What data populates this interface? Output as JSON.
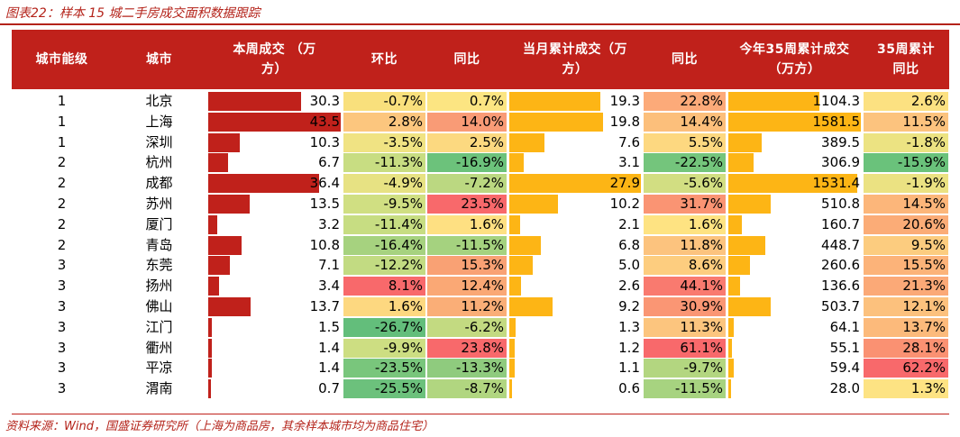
{
  "title": "图表22：样本 15 城二手房成交面积数据跟踪",
  "source": "资料来源：Wind，国盛证券研究所（上海为商品房，其余样本城市均为商品住宅）",
  "colors": {
    "header_bg": "#c0211b",
    "bar_weekly": "#c0211b",
    "bar_cumulative": "#fdb515"
  },
  "headers": [
    [
      "城市能级"
    ],
    [
      "城市"
    ],
    [
      "本周成交 （万",
      "方）"
    ],
    [
      "环比"
    ],
    [
      "同比"
    ],
    [
      "当月累计成交（万",
      "方）"
    ],
    [
      "同比"
    ],
    [
      "今年35周累计成交",
      "（万方）"
    ],
    [
      "35周累计",
      "同比"
    ]
  ],
  "rows": [
    {
      "tier": "1",
      "city": "北京",
      "week": "30.3",
      "wow": "-0.7%",
      "week_yoy": "0.7%",
      "month": "19.3",
      "month_yoy": "22.8%",
      "ytd": "1104.3",
      "ytd_yoy": "2.6%",
      "wow_color": "#f9e07c",
      "week_yoy_color": "#fce582",
      "month_yoy_color": "#fcaa79",
      "ytd_yoy_color": "#fce181",
      "week_bar": 0.7,
      "month_bar": 0.69,
      "ytd_bar": 0.69
    },
    {
      "tier": "1",
      "city": "上海",
      "week": "43.5",
      "wow": "2.8%",
      "week_yoy": "14.0%",
      "month": "19.8",
      "month_yoy": "14.4%",
      "ytd": "1581.5",
      "ytd_yoy": "11.5%",
      "wow_color": "#fcc67e",
      "week_yoy_color": "#f99b76",
      "month_yoy_color": "#fcbf7b",
      "ytd_yoy_color": "#fcc37e",
      "week_bar": 1.0,
      "month_bar": 0.71,
      "ytd_bar": 1.0
    },
    {
      "tier": "1",
      "city": "深圳",
      "week": "10.3",
      "wow": "-3.5%",
      "week_yoy": "2.5%",
      "month": "7.6",
      "month_yoy": "5.5%",
      "ytd": "389.5",
      "ytd_yoy": "-1.8%",
      "wow_color": "#f0e383",
      "week_yoy_color": "#fcd980",
      "month_yoy_color": "#fdd880",
      "ytd_yoy_color": "#ece382",
      "week_bar": 0.24,
      "month_bar": 0.27,
      "ytd_bar": 0.25
    },
    {
      "tier": "2",
      "city": "杭州",
      "week": "6.7",
      "wow": "-11.3%",
      "week_yoy": "-16.9%",
      "month": "3.1",
      "month_yoy": "-22.5%",
      "ytd": "306.9",
      "ytd_yoy": "-15.9%",
      "wow_color": "#c8dd82",
      "week_yoy_color": "#6cc27b",
      "month_yoy_color": "#74c57c",
      "ytd_yoy_color": "#6ac27b",
      "week_bar": 0.15,
      "month_bar": 0.11,
      "ytd_bar": 0.19
    },
    {
      "tier": "2",
      "city": "成都",
      "week": "36.4",
      "wow": "-4.9%",
      "week_yoy": "-7.2%",
      "month": "27.9",
      "month_yoy": "-5.6%",
      "ytd": "1531.4",
      "ytd_yoy": "-1.9%",
      "wow_color": "#e7e283",
      "week_yoy_color": "#bbd881",
      "month_yoy_color": "#d2de82",
      "ytd_yoy_color": "#ebe282",
      "week_bar": 0.84,
      "month_bar": 1.0,
      "ytd_bar": 0.97
    },
    {
      "tier": "2",
      "city": "苏州",
      "week": "13.5",
      "wow": "-9.5%",
      "week_yoy": "23.5%",
      "month": "10.2",
      "month_yoy": "31.7%",
      "ytd": "510.8",
      "ytd_yoy": "14.5%",
      "wow_color": "#d0df82",
      "week_yoy_color": "#f8696b",
      "month_yoy_color": "#fa9473",
      "ytd_yoy_color": "#fcb67a",
      "week_bar": 0.31,
      "month_bar": 0.37,
      "ytd_bar": 0.32
    },
    {
      "tier": "2",
      "city": "厦门",
      "week": "3.2",
      "wow": "-11.4%",
      "week_yoy": "1.6%",
      "month": "2.1",
      "month_yoy": "1.6%",
      "ytd": "160.7",
      "ytd_yoy": "20.6%",
      "wow_color": "#c7dd82",
      "week_yoy_color": "#fee082",
      "month_yoy_color": "#fee382",
      "ytd_yoy_color": "#fbac77",
      "week_bar": 0.07,
      "month_bar": 0.08,
      "ytd_bar": 0.1
    },
    {
      "tier": "2",
      "city": "青岛",
      "week": "10.8",
      "wow": "-16.4%",
      "week_yoy": "-11.5%",
      "month": "6.8",
      "month_yoy": "11.8%",
      "ytd": "448.7",
      "ytd_yoy": "9.5%",
      "wow_color": "#a6d27f",
      "week_yoy_color": "#a5d27f",
      "month_yoy_color": "#fcc37e",
      "ytd_yoy_color": "#fccc7f",
      "week_bar": 0.25,
      "month_bar": 0.24,
      "ytd_bar": 0.28
    },
    {
      "tier": "3",
      "city": "东莞",
      "week": "7.1",
      "wow": "-12.2%",
      "week_yoy": "15.3%",
      "month": "5.0",
      "month_yoy": "8.6%",
      "ytd": "260.6",
      "ytd_yoy": "15.5%",
      "wow_color": "#c2db82",
      "week_yoy_color": "#f9a174",
      "month_yoy_color": "#fdcd7f",
      "ytd_yoy_color": "#fcb379",
      "week_bar": 0.16,
      "month_bar": 0.18,
      "ytd_bar": 0.16
    },
    {
      "tier": "3",
      "city": "扬州",
      "week": "3.4",
      "wow": "8.1%",
      "week_yoy": "12.4%",
      "month": "2.6",
      "month_yoy": "44.1%",
      "ytd": "136.6",
      "ytd_yoy": "21.3%",
      "wow_color": "#f8696b",
      "week_yoy_color": "#faa875",
      "month_yoy_color": "#f97a6f",
      "ytd_yoy_color": "#fba977",
      "week_bar": 0.08,
      "month_bar": 0.09,
      "ytd_bar": 0.09
    },
    {
      "tier": "3",
      "city": "佛山",
      "week": "13.7",
      "wow": "1.6%",
      "week_yoy": "11.2%",
      "month": "9.2",
      "month_yoy": "30.9%",
      "ytd": "503.7",
      "ytd_yoy": "12.1%",
      "wow_color": "#fdd880",
      "week_yoy_color": "#faae77",
      "month_yoy_color": "#fa9674",
      "ytd_yoy_color": "#fcc17d",
      "week_bar": 0.32,
      "month_bar": 0.33,
      "ytd_bar": 0.32
    },
    {
      "tier": "3",
      "city": "江门",
      "week": "1.5",
      "wow": "-26.7%",
      "week_yoy": "-6.2%",
      "month": "1.3",
      "month_yoy": "11.3%",
      "ytd": "64.1",
      "ytd_yoy": "13.7%",
      "wow_color": "#63be7b",
      "week_yoy_color": "#c3da81",
      "month_yoy_color": "#fcc57e",
      "ytd_yoy_color": "#fcba7b",
      "week_bar": 0.03,
      "month_bar": 0.05,
      "ytd_bar": 0.04
    },
    {
      "tier": "3",
      "city": "衢州",
      "week": "1.4",
      "wow": "-9.9%",
      "week_yoy": "23.8%",
      "month": "1.2",
      "month_yoy": "61.1%",
      "ytd": "55.1",
      "ytd_yoy": "28.1%",
      "wow_color": "#cdde82",
      "week_yoy_color": "#f8696b",
      "month_yoy_color": "#f8696b",
      "ytd_yoy_color": "#fa9172",
      "week_bar": 0.03,
      "month_bar": 0.04,
      "ytd_bar": 0.03
    },
    {
      "tier": "3",
      "city": "平凉",
      "week": "1.4",
      "wow": "-23.5%",
      "week_yoy": "-13.3%",
      "month": "1.1",
      "month_yoy": "-9.7%",
      "ytd": "59.4",
      "ytd_yoy": "62.2%",
      "wow_color": "#79c67c",
      "week_yoy_color": "#8fcb7e",
      "month_yoy_color": "#b3d680",
      "ytd_yoy_color": "#f8696b",
      "week_bar": 0.03,
      "month_bar": 0.04,
      "ytd_bar": 0.04
    },
    {
      "tier": "3",
      "city": "渭南",
      "week": "0.7",
      "wow": "-25.5%",
      "week_yoy": "-8.7%",
      "month": "0.6",
      "month_yoy": "-11.5%",
      "ytd": "28.0",
      "ytd_yoy": "1.3%",
      "wow_color": "#6cc17c",
      "week_yoy_color": "#b1d680",
      "month_yoy_color": "#a7d380",
      "ytd_yoy_color": "#fde383",
      "week_bar": 0.02,
      "month_bar": 0.02,
      "ytd_bar": 0.02
    }
  ]
}
